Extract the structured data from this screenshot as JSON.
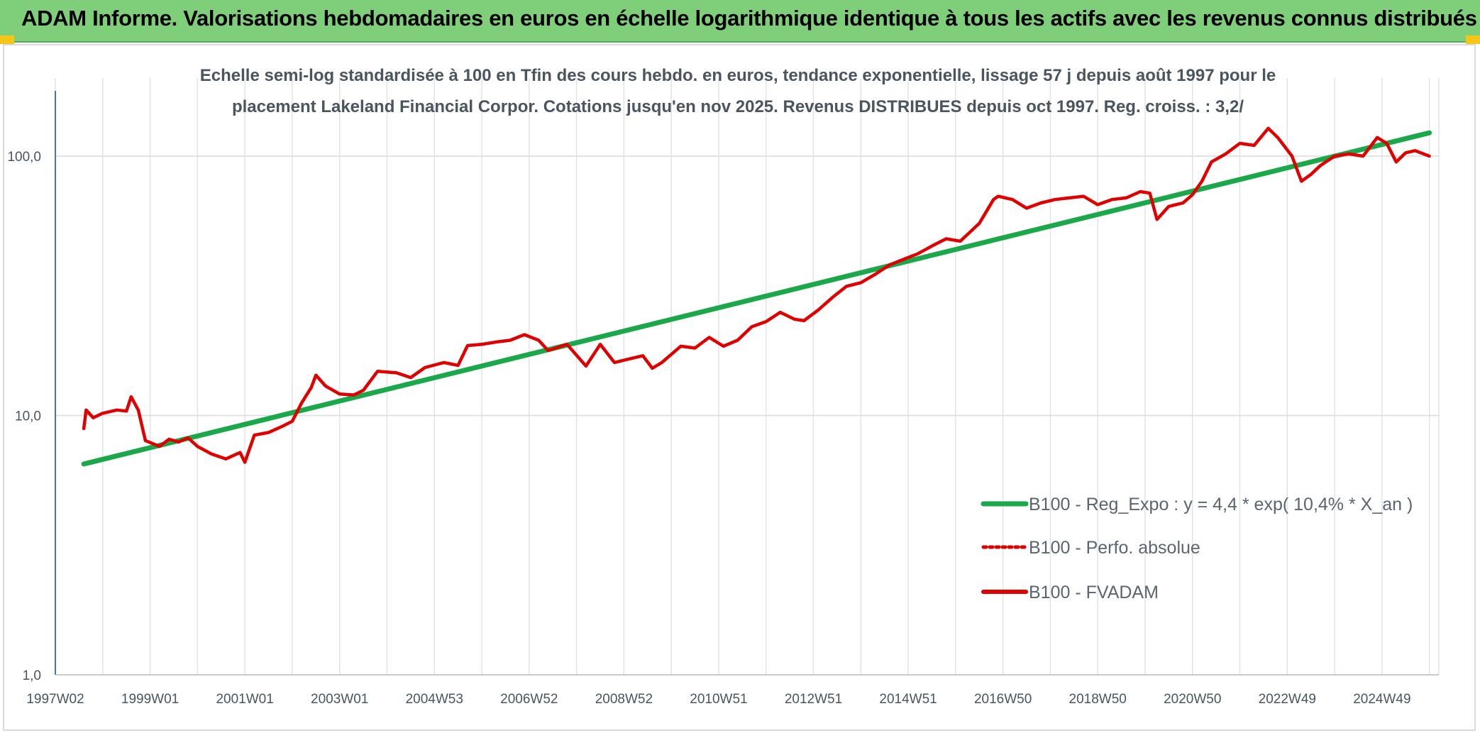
{
  "header": {
    "title": "ADAM Informe. Valorisations hebdomadaires en euros en échelle logarithmique identique à tous les actifs avec les revenus connus distribués",
    "background_color": "#7fcf7a",
    "corner_color": "#f5c518"
  },
  "chart_data": {
    "type": "line",
    "title_lines": [
      "Echelle semi-log standardisée à 100 en Tfin des cours hebdo. en euros, tendance exponentielle, lissage 57 j depuis août 1997 pour le",
      "placement Lakeland Financial Corpor. Cotations jusqu'en nov 2025. Revenus DISTRIBUES depuis oct 1997. Reg. croiss. : 3,2/"
    ],
    "y_scale": "log",
    "ylim": [
      1,
      200
    ],
    "y_ticks": [
      {
        "value": 1,
        "label": "1,0"
      },
      {
        "value": 10,
        "label": "10,0"
      },
      {
        "value": 100,
        "label": "100,0"
      }
    ],
    "xlim": [
      1997.0,
      2026.2
    ],
    "x_ticks": [
      {
        "value": 1997.0,
        "label": "1997W02"
      },
      {
        "value": 1999.0,
        "label": "1999W01"
      },
      {
        "value": 2001.0,
        "label": "2001W01"
      },
      {
        "value": 2003.0,
        "label": "2003W01"
      },
      {
        "value": 2005.0,
        "label": "2004W53"
      },
      {
        "value": 2007.0,
        "label": "2006W52"
      },
      {
        "value": 2009.0,
        "label": "2008W52"
      },
      {
        "value": 2011.0,
        "label": "2010W51"
      },
      {
        "value": 2013.0,
        "label": "2012W51"
      },
      {
        "value": 2015.0,
        "label": "2014W51"
      },
      {
        "value": 2017.0,
        "label": "2016W50"
      },
      {
        "value": 2019.0,
        "label": "2018W50"
      },
      {
        "value": 2021.0,
        "label": "2020W50"
      },
      {
        "value": 2023.0,
        "label": "2022W49"
      },
      {
        "value": 2025.0,
        "label": "2024W49"
      }
    ],
    "grid": true,
    "legend_position": "bottom-right",
    "series": [
      {
        "name": "B100 - Reg_Expo : y = 4,4 * exp( 10,4% *  X_an )",
        "color": "#1aa84a",
        "style": "solid",
        "x": [
          1997.6,
          2026.0
        ],
        "y": [
          6.5,
          123
        ]
      },
      {
        "name": "B100 - Perfo. absolue",
        "color": "#e00000",
        "style": "dotted",
        "x": [],
        "y": []
      },
      {
        "name": "B100 - FVADAM",
        "color": "#e00000",
        "style": "solid",
        "x": [
          1997.6,
          1997.65,
          1997.8,
          1998.0,
          1998.3,
          1998.5,
          1998.6,
          1998.75,
          1998.9,
          1999.2,
          1999.4,
          1999.6,
          1999.8,
          2000.0,
          2000.3,
          2000.6,
          2000.9,
          2001.0,
          2001.2,
          2001.5,
          2001.8,
          2002.0,
          2002.2,
          2002.4,
          2002.5,
          2002.7,
          2003.0,
          2003.3,
          2003.5,
          2003.8,
          2004.2,
          2004.5,
          2004.8,
          2005.2,
          2005.5,
          2005.7,
          2006.0,
          2006.3,
          2006.6,
          2006.9,
          2007.2,
          2007.4,
          2007.8,
          2008.2,
          2008.5,
          2008.8,
          2009.1,
          2009.4,
          2009.6,
          2009.8,
          2010.2,
          2010.5,
          2010.8,
          2011.1,
          2011.4,
          2011.7,
          2012.0,
          2012.3,
          2012.6,
          2012.8,
          2013.1,
          2013.4,
          2013.7,
          2014.0,
          2014.3,
          2014.6,
          2014.9,
          2015.2,
          2015.5,
          2015.8,
          2016.1,
          2016.5,
          2016.8,
          2016.9,
          2017.2,
          2017.5,
          2017.8,
          2018.1,
          2018.4,
          2018.7,
          2019.0,
          2019.3,
          2019.6,
          2019.9,
          2020.1,
          2020.25,
          2020.5,
          2020.8,
          2021.0,
          2021.2,
          2021.4,
          2021.7,
          2022.0,
          2022.3,
          2022.6,
          2022.8,
          2023.1,
          2023.3,
          2023.5,
          2023.7,
          2024.0,
          2024.3,
          2024.6,
          2024.9,
          2025.1,
          2025.3,
          2025.5,
          2025.7,
          2026.0
        ],
        "y": [
          8.9,
          10.5,
          9.8,
          10.2,
          10.5,
          10.4,
          11.8,
          10.5,
          8.0,
          7.6,
          8.1,
          7.9,
          8.2,
          7.6,
          7.1,
          6.8,
          7.2,
          6.6,
          8.4,
          8.6,
          9.1,
          9.5,
          11.2,
          12.8,
          14.3,
          13.0,
          12.1,
          12.0,
          12.5,
          14.8,
          14.6,
          14.0,
          15.3,
          16.0,
          15.6,
          18.6,
          18.8,
          19.2,
          19.5,
          20.5,
          19.5,
          17.8,
          18.8,
          15.5,
          18.8,
          16.0,
          16.5,
          17.0,
          15.2,
          16.0,
          18.5,
          18.2,
          20.0,
          18.5,
          19.5,
          22.0,
          23.0,
          25.0,
          23.5,
          23.2,
          25.5,
          28.5,
          31.5,
          32.5,
          35.0,
          38.0,
          40.0,
          42.0,
          45.0,
          48.0,
          47.0,
          55.0,
          68.0,
          70.0,
          68.0,
          63.0,
          66.0,
          68.0,
          69.0,
          70.0,
          65.0,
          68.0,
          69.0,
          73.0,
          72.0,
          57.0,
          64.0,
          66.0,
          71.0,
          80.0,
          95.0,
          102.0,
          112.0,
          110.0,
          128.0,
          118.0,
          100.0,
          80.0,
          85.0,
          92.0,
          100.0,
          102.0,
          100.0,
          118.0,
          112.0,
          95.0,
          103.0,
          105.0,
          100.0
        ]
      }
    ]
  }
}
